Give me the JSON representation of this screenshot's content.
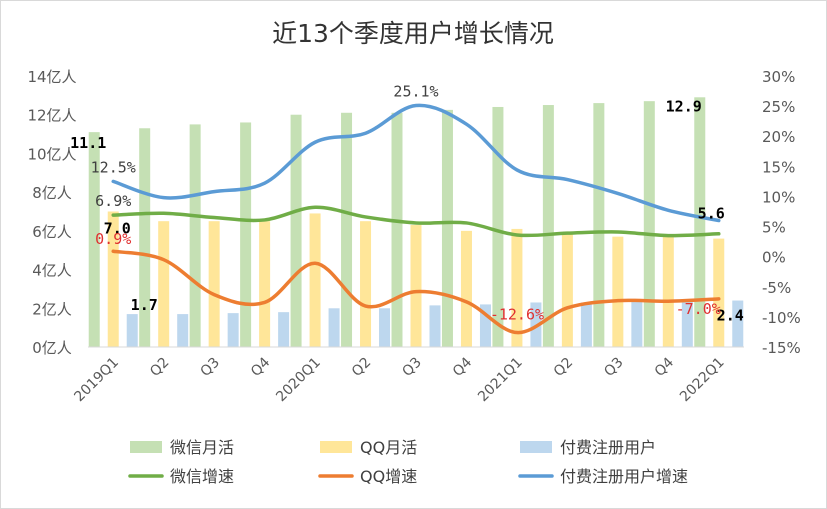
{
  "chart_data": {
    "type": "bar",
    "title": "近13个季度用户增长情况",
    "categories": [
      "2019Q1",
      "Q2",
      "Q3",
      "Q4",
      "2020Q1",
      "Q2",
      "Q3",
      "Q4",
      "2021Q1",
      "Q2",
      "Q3",
      "Q4",
      "2022Q1"
    ],
    "y_left": {
      "ticks": [
        "14亿人",
        "12亿人",
        "10亿人",
        "8亿人",
        "6亿人",
        "4亿人",
        "2亿人",
        "0亿人"
      ],
      "ylim": [
        0,
        14
      ]
    },
    "y_right": {
      "ticks": [
        "30%",
        "25%",
        "20%",
        "15%",
        "10%",
        "5%",
        "0%",
        "-5%",
        "-10%",
        "-15%"
      ],
      "ylim": [
        -15,
        30
      ]
    },
    "bar_series": [
      {
        "name": "微信月活",
        "color": "#c5e0b4",
        "values": [
          11.1,
          11.3,
          11.5,
          11.6,
          12.0,
          12.1,
          12.1,
          12.25,
          12.4,
          12.5,
          12.6,
          12.7,
          12.9
        ]
      },
      {
        "name": "QQ月活",
        "color": "#ffe699",
        "values": [
          7.0,
          6.5,
          6.5,
          6.5,
          6.9,
          6.5,
          6.3,
          6.0,
          6.1,
          5.9,
          5.7,
          5.7,
          5.6
        ]
      },
      {
        "name": "付费注册用户",
        "color": "#bdd7ee",
        "values": [
          1.7,
          1.7,
          1.75,
          1.8,
          2.0,
          2.0,
          2.15,
          2.2,
          2.3,
          2.3,
          2.4,
          2.4,
          2.4
        ]
      }
    ],
    "line_series": [
      {
        "name": "微信增速",
        "color": "#70ad47",
        "values": [
          6.9,
          7.2,
          6.5,
          6.1,
          8.2,
          6.6,
          5.6,
          5.6,
          3.6,
          3.9,
          4.1,
          3.5,
          3.8
        ]
      },
      {
        "name": "QQ增速",
        "color": "#ed7d31",
        "values": [
          0.9,
          -0.5,
          -6.3,
          -7.6,
          -1.1,
          -8.2,
          -5.8,
          -7.5,
          -12.6,
          -8.5,
          -7.3,
          -7.4,
          -7.0
        ]
      },
      {
        "name": "付费注册用户增速",
        "color": "#5b9bd5",
        "values": [
          12.5,
          9.8,
          10.8,
          12.2,
          19.0,
          20.5,
          25.1,
          22.0,
          14.4,
          12.8,
          10.5,
          7.7,
          6.0
        ]
      }
    ],
    "data_labels": [
      {
        "text": "11.1",
        "series": "微信月活",
        "index": 0,
        "style": "dl"
      },
      {
        "text": "12.9",
        "series": "微信月活",
        "index": 12,
        "style": "dl"
      },
      {
        "text": "7.0",
        "series": "QQ月活",
        "index": 0,
        "style": "dl"
      },
      {
        "text": "5.6",
        "series": "QQ月活",
        "index": 12,
        "style": "dl"
      },
      {
        "text": "1.7",
        "series": "付费注册用户",
        "index": 0,
        "style": "dl"
      },
      {
        "text": "2.4",
        "series": "付费注册用户",
        "index": 12,
        "style": "dl"
      },
      {
        "text": "6.9%",
        "series": "微信增速",
        "index": 0,
        "style": "dlg"
      },
      {
        "text": "0.9%",
        "series": "QQ增速",
        "index": 0,
        "style": "dlr"
      },
      {
        "text": "-12.6%",
        "series": "QQ增速",
        "index": 8,
        "style": "dlr"
      },
      {
        "text": "-7.0%",
        "series": "QQ增速",
        "index": 12,
        "style": "dlr"
      },
      {
        "text": "12.5%",
        "series": "付费注册用户增速",
        "index": 0,
        "style": "dlg"
      },
      {
        "text": "25.1%",
        "series": "付费注册用户增速",
        "index": 6,
        "style": "dlg"
      }
    ],
    "legend_placement": "bottom",
    "grid": false
  }
}
